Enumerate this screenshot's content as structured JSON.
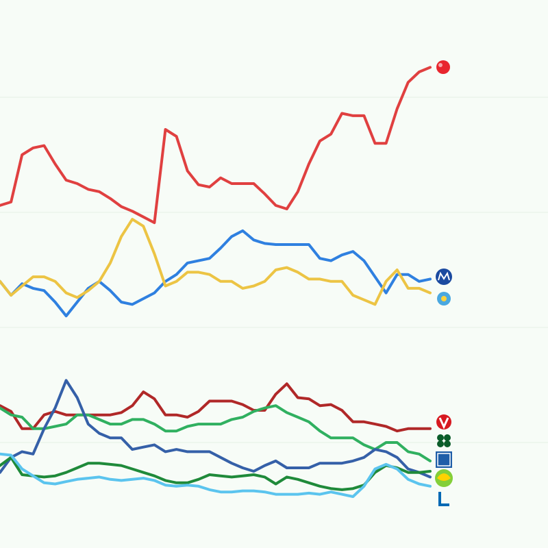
{
  "chart_data": {
    "type": "line",
    "ylim": [
      0,
      24
    ],
    "yticks": [
      5,
      10,
      15,
      20
    ],
    "grid": true,
    "series": [
      {
        "color": "#e04040",
        "values": [
          15.3,
          15.45,
          17.5,
          17.8,
          17.9,
          17.1,
          16.4,
          16.25,
          16.0,
          15.9,
          15.6,
          15.25,
          15.05,
          14.8,
          14.55,
          18.6,
          18.3,
          16.8,
          16.2,
          16.1,
          16.5,
          16.25,
          16.25,
          16.25,
          15.8,
          15.3,
          15.15,
          15.9,
          17.1,
          18.1,
          18.4,
          19.3,
          19.2,
          19.2,
          18.0,
          18.0,
          19.5,
          20.65,
          21.1,
          21.3
        ]
      },
      {
        "color": "#2f80e0",
        "values": [
          12.0,
          11.4,
          11.9,
          11.7,
          11.6,
          11.1,
          10.5,
          11.1,
          11.7,
          12.0,
          11.6,
          11.1,
          11.0,
          11.25,
          11.5,
          12.0,
          12.3,
          12.8,
          12.9,
          13.0,
          13.45,
          13.95,
          14.2,
          13.8,
          13.65,
          13.6,
          13.6,
          13.6,
          13.6,
          13.0,
          12.9,
          13.15,
          13.3,
          12.9,
          12.2,
          11.5,
          12.3,
          12.3,
          12.0,
          12.1
        ]
      },
      {
        "color": "#ecc444",
        "values": [
          12.0,
          11.4,
          11.8,
          12.2,
          12.2,
          12.0,
          11.5,
          11.3,
          11.6,
          12.0,
          12.8,
          13.95,
          14.7,
          14.4,
          13.2,
          11.8,
          12.0,
          12.4,
          12.4,
          12.3,
          12.0,
          12.0,
          11.7,
          11.8,
          12.0,
          12.5,
          12.6,
          12.4,
          12.1,
          12.1,
          12.0,
          12.0,
          11.4,
          11.2,
          11.0,
          12.0,
          12.5,
          11.7,
          11.7,
          11.5
        ]
      },
      {
        "color": "#b02828",
        "values": [
          6.6,
          6.35,
          5.6,
          5.6,
          6.2,
          6.35,
          6.2,
          6.2,
          6.2,
          6.2,
          6.2,
          6.3,
          6.6,
          7.2,
          6.9,
          6.2,
          6.2,
          6.1,
          6.35,
          6.8,
          6.8,
          6.8,
          6.65,
          6.4,
          6.4,
          7.1,
          7.55,
          6.95,
          6.9,
          6.6,
          6.65,
          6.4,
          5.9,
          5.9,
          5.8,
          5.7,
          5.5,
          5.6,
          5.6,
          5.6
        ]
      },
      {
        "color": "#30b060",
        "values": [
          6.5,
          6.2,
          6.1,
          5.6,
          5.6,
          5.7,
          5.8,
          6.2,
          6.2,
          6.0,
          5.8,
          5.8,
          6.0,
          6.0,
          5.8,
          5.5,
          5.5,
          5.7,
          5.8,
          5.8,
          5.8,
          6.0,
          6.1,
          6.35,
          6.5,
          6.6,
          6.3,
          6.1,
          5.9,
          5.5,
          5.2,
          5.2,
          5.2,
          4.9,
          4.7,
          5.0,
          5.0,
          4.6,
          4.5,
          4.2
        ]
      },
      {
        "color": "#3560a8",
        "values": [
          3.7,
          4.35,
          4.6,
          4.5,
          5.6,
          6.5,
          7.7,
          6.95,
          5.8,
          5.4,
          5.2,
          5.2,
          4.7,
          4.8,
          4.9,
          4.6,
          4.7,
          4.6,
          4.6,
          4.6,
          4.35,
          4.1,
          3.9,
          3.75,
          4.0,
          4.2,
          3.9,
          3.9,
          3.9,
          4.1,
          4.1,
          4.1,
          4.2,
          4.35,
          4.7,
          4.6,
          4.35,
          3.85,
          3.7,
          3.5
        ]
      },
      {
        "color": "#1f8a3a",
        "values": [
          4.0,
          4.35,
          3.6,
          3.55,
          3.5,
          3.55,
          3.7,
          3.9,
          4.1,
          4.1,
          4.05,
          4.0,
          3.85,
          3.7,
          3.55,
          3.35,
          3.25,
          3.25,
          3.4,
          3.6,
          3.55,
          3.5,
          3.55,
          3.6,
          3.5,
          3.2,
          3.5,
          3.4,
          3.25,
          3.1,
          3.0,
          2.95,
          3.0,
          3.15,
          3.7,
          4.0,
          3.9,
          3.7,
          3.7,
          3.75
        ]
      },
      {
        "color": "#5bc4ee",
        "values": [
          4.5,
          4.45,
          3.85,
          3.55,
          3.25,
          3.2,
          3.3,
          3.4,
          3.45,
          3.5,
          3.4,
          3.35,
          3.4,
          3.45,
          3.35,
          3.15,
          3.1,
          3.15,
          3.1,
          2.95,
          2.85,
          2.85,
          2.9,
          2.9,
          2.85,
          2.75,
          2.75,
          2.75,
          2.8,
          2.75,
          2.85,
          2.75,
          2.65,
          3.1,
          3.85,
          4.05,
          3.85,
          3.4,
          3.2,
          3.1
        ]
      }
    ]
  }
}
